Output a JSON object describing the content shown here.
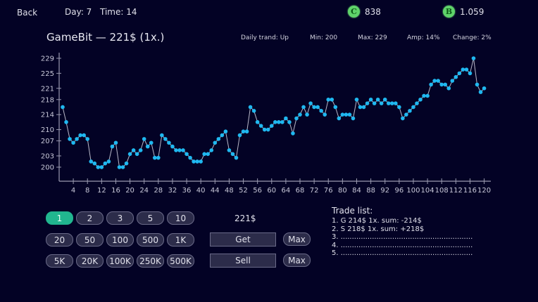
{
  "header": {
    "back_label": "Back",
    "day": "Day: 7",
    "time": "Time: 14",
    "coin_c": {
      "icon": "C",
      "value": "838"
    },
    "coin_b": {
      "icon": "B",
      "value": "1.059"
    }
  },
  "asset": {
    "title": "GameBit — 221$ (1x.)",
    "daily_trend": "Daily trand: Up",
    "min": "Min: 200",
    "max": "Max: 229",
    "amp": "Amp: 14%",
    "change": "Change: 2%"
  },
  "colors": {
    "background": "#030225",
    "point": "#1fb8f0",
    "line": "#b8b8c8",
    "active_button": "#21b68f",
    "coin": "#5fd36a"
  },
  "chart_data": {
    "type": "line",
    "title": "GameBit — 221$ (1x.)",
    "xlabel": "",
    "ylabel": "",
    "y_ticks": [
      200,
      203,
      207,
      210,
      214,
      218,
      221,
      225,
      229
    ],
    "x_ticks": [
      4,
      8,
      12,
      16,
      20,
      24,
      28,
      32,
      36,
      40,
      44,
      48,
      52,
      56,
      60,
      64,
      68,
      72,
      76,
      80,
      84,
      88,
      92,
      96,
      100,
      104,
      108,
      112,
      116,
      120
    ],
    "ylim": [
      198,
      230
    ],
    "xlim": [
      0,
      121
    ],
    "grid": false,
    "x": [
      1,
      2,
      3,
      4,
      5,
      6,
      7,
      8,
      9,
      10,
      11,
      12,
      13,
      14,
      15,
      16,
      17,
      18,
      19,
      20,
      21,
      22,
      23,
      24,
      25,
      26,
      27,
      28,
      29,
      30,
      31,
      32,
      33,
      34,
      35,
      36,
      37,
      38,
      39,
      40,
      41,
      42,
      43,
      44,
      45,
      46,
      47,
      48,
      49,
      50,
      51,
      52,
      53,
      54,
      55,
      56,
      57,
      58,
      59,
      60,
      61,
      62,
      63,
      64,
      65,
      66,
      67,
      68,
      69,
      70,
      71,
      72,
      73,
      74,
      75,
      76,
      77,
      78,
      79,
      80,
      81,
      82,
      83,
      84,
      85,
      86,
      87,
      88,
      89,
      90,
      91,
      92,
      93,
      94,
      95,
      96,
      97,
      98,
      99,
      100,
      101,
      102,
      103,
      104,
      105,
      106,
      107,
      108,
      109,
      110,
      111,
      112,
      113,
      114,
      115,
      116,
      117,
      118,
      119,
      120
    ],
    "values": [
      216,
      212,
      207.5,
      206.5,
      207.5,
      208.5,
      208.5,
      207.5,
      201.5,
      201,
      200,
      200,
      201,
      201.5,
      205.5,
      206.5,
      200,
      200,
      201,
      203.5,
      204.5,
      203.5,
      204.5,
      207.5,
      205.5,
      206.5,
      202.5,
      202.5,
      208.5,
      207.5,
      206.5,
      205.5,
      204.5,
      204.5,
      204.5,
      203.5,
      202.5,
      201.5,
      201.5,
      201.5,
      203.5,
      203.5,
      204.5,
      206.5,
      207.5,
      208.5,
      209.5,
      204.5,
      203.5,
      202.5,
      208.5,
      209.5,
      209.5,
      216,
      215,
      212,
      211,
      210,
      210,
      211,
      212,
      212,
      212,
      213,
      212,
      209,
      213,
      214,
      216,
      214,
      217,
      216,
      216,
      215,
      214,
      218,
      218,
      216,
      213,
      214,
      214,
      214,
      213,
      218,
      216,
      216,
      217,
      218,
      217,
      218,
      217,
      218,
      217,
      217,
      217,
      216,
      213,
      214,
      215,
      216,
      217,
      218,
      219,
      219,
      222,
      223,
      223,
      222,
      222,
      221,
      223,
      224,
      225,
      226,
      226,
      225,
      229,
      222,
      220,
      221
    ]
  },
  "controls": {
    "multipliers": [
      [
        "1",
        "2",
        "3",
        "5",
        "10"
      ],
      [
        "20",
        "50",
        "100",
        "500",
        "1K"
      ],
      [
        "5K",
        "20K",
        "100K",
        "250K",
        "500K"
      ]
    ],
    "price": "221$",
    "get_label": "Get",
    "sell_label": "Sell",
    "max_label": "Max"
  },
  "trade_list": {
    "title": "Trade list:",
    "rows": [
      "1. G 214$  1x.  sum:  -214$",
      "2. S 218$  1x.  sum:  +218$",
      "3. .......................................................................",
      "4. .......................................................................",
      "5. ......................................................................."
    ]
  }
}
